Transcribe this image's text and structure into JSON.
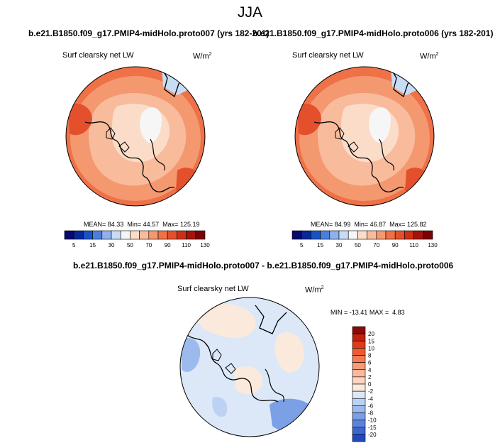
{
  "figure": {
    "season": "JJA",
    "left_title": "b.e21.B1850.f09_g17.PMIP4-midHolo.proto007 (yrs 182-201)",
    "right_title": "b.e21.B1850.f09_g17.PMIP4-midHolo.proto006 (yrs 182-201)",
    "diff_title": "b.e21.B1850.f09_g17.PMIP4-midHolo.proto007 - b.e21.B1850.f09_g17.PMIP4-midHolo.proto006"
  },
  "chart_data": [
    {
      "type": "heatmap",
      "projection": "polar-stereographic",
      "variable": "Surf clearsky net LW",
      "units": "W/m",
      "units_exponent": "2",
      "stats": {
        "mean_label": "MEAN=",
        "mean": "84.33",
        "min_label": "Min=",
        "min": "44.57",
        "max_label": "Max=",
        "max": "125.19"
      },
      "colorbar": {
        "orientation": "horizontal",
        "labels": [
          "5",
          "15",
          "30",
          "50",
          "70",
          "90",
          "110",
          "130"
        ],
        "colors": [
          "#08086e",
          "#08289a",
          "#1a52c4",
          "#4a7fdc",
          "#8fb2ec",
          "#c8dcf6",
          "#f6f6f6",
          "#fbdcc8",
          "#f8bc9c",
          "#f49870",
          "#ee7148",
          "#e4502c",
          "#cc3018",
          "#a51408",
          "#780404"
        ]
      }
    },
    {
      "type": "heatmap",
      "projection": "polar-stereographic",
      "variable": "Surf clearsky net LW",
      "units": "W/m",
      "units_exponent": "2",
      "stats": {
        "mean_label": "MEAN=",
        "mean": "84.99",
        "min_label": "Min=",
        "min": "46.87",
        "max_label": "Max=",
        "max": "125.82"
      },
      "colorbar": {
        "orientation": "horizontal",
        "labels": [
          "5",
          "15",
          "30",
          "50",
          "70",
          "90",
          "110",
          "130"
        ],
        "colors": [
          "#08086e",
          "#08289a",
          "#1a52c4",
          "#4a7fdc",
          "#8fb2ec",
          "#c8dcf6",
          "#f6f6f6",
          "#fbdcc8",
          "#f8bc9c",
          "#f49870",
          "#ee7148",
          "#e4502c",
          "#cc3018",
          "#a51408",
          "#780404"
        ]
      }
    },
    {
      "type": "heatmap",
      "projection": "polar-stereographic",
      "variable": "Surf clearsky net LW",
      "units": "W/m",
      "units_exponent": "2",
      "stats": {
        "min_label": "MIN =",
        "min": "-13.41",
        "max_label": "MAX =",
        "max": "4.83"
      },
      "colorbar": {
        "orientation": "vertical",
        "labels": [
          "20",
          "15",
          "10",
          "8",
          "6",
          "4",
          "2",
          "0",
          "-2",
          "-4",
          "-6",
          "-8",
          "-10",
          "-15",
          "-20"
        ],
        "colors": [
          "#8c0a0a",
          "#c0200e",
          "#e03a18",
          "#ee5a30",
          "#f47a52",
          "#f89a76",
          "#fab89c",
          "#fcd4c0",
          "#fbeadc",
          "#dce8f8",
          "#bcd2f4",
          "#9cbaee",
          "#7ca0e6",
          "#5c84dc",
          "#3c66d0",
          "#2048c0"
        ]
      }
    }
  ]
}
